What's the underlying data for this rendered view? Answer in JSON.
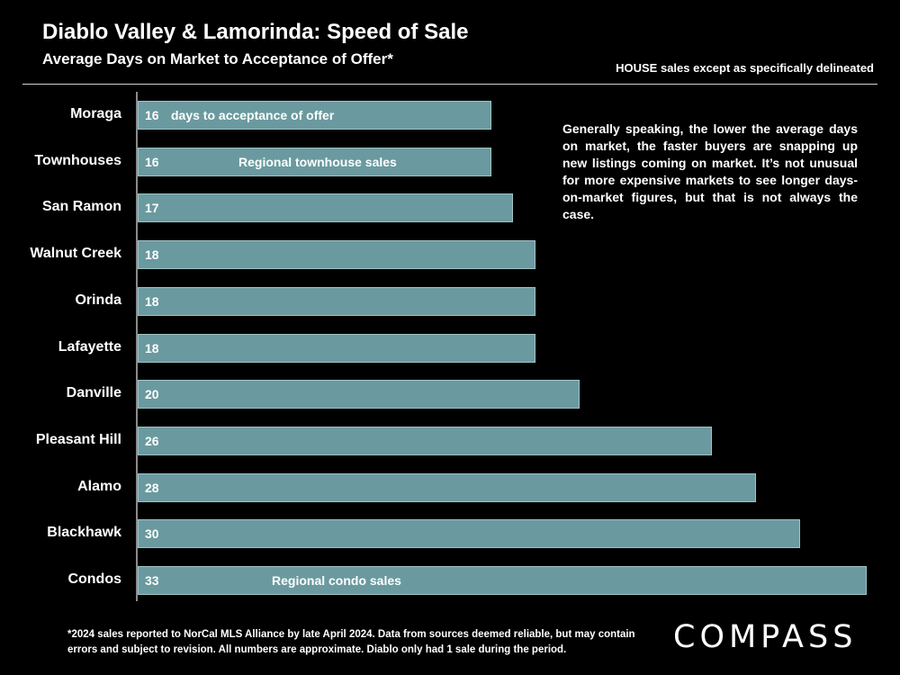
{
  "header": {
    "title": "Diablo Valley & Lamorinda:  Speed of Sale",
    "subtitle": "Average Days on Market to Acceptance of Offer*",
    "note": "HOUSE sales except as specifically delineated"
  },
  "side_text": "Generally speaking, the lower the average days on market, the faster buyers are snapping up new listings coming on market. It’s not unusual for more expensive markets to see longer days-on-market figures, but that is not always the case.",
  "footnote": "*2024 sales reported to NorCal MLS Alliance by late April 2024. Data from sources deemed reliable, but may contain errors and subject to revision. All numbers are approximate. Diablo only had 1 sale during the period.",
  "logo": "COMPASS",
  "colors": {
    "bar": "#6a9a9f",
    "background": "#000000"
  },
  "chart_data": {
    "type": "bar",
    "orientation": "horizontal",
    "title": "Diablo Valley & Lamorinda:  Speed of Sale",
    "subtitle": "Average Days on Market to Acceptance of Offer*",
    "categories": [
      "Moraga",
      "Townhouses",
      "San Ramon",
      "Walnut Creek",
      "Orinda",
      "Lafayette",
      "Danville",
      "Pleasant Hill",
      "Alamo",
      "Blackhawk",
      "Condos"
    ],
    "values": [
      16,
      16,
      17,
      18,
      18,
      18,
      20,
      26,
      28,
      30,
      33
    ],
    "annotations": [
      {
        "category": "Moraga",
        "text": "days to acceptance of offer"
      },
      {
        "category": "Townhouses",
        "text": "Regional townhouse sales"
      },
      {
        "category": "Condos",
        "text": "Regional condo sales"
      }
    ],
    "xlim": [
      0,
      33
    ],
    "grid": false,
    "legend": "none"
  }
}
